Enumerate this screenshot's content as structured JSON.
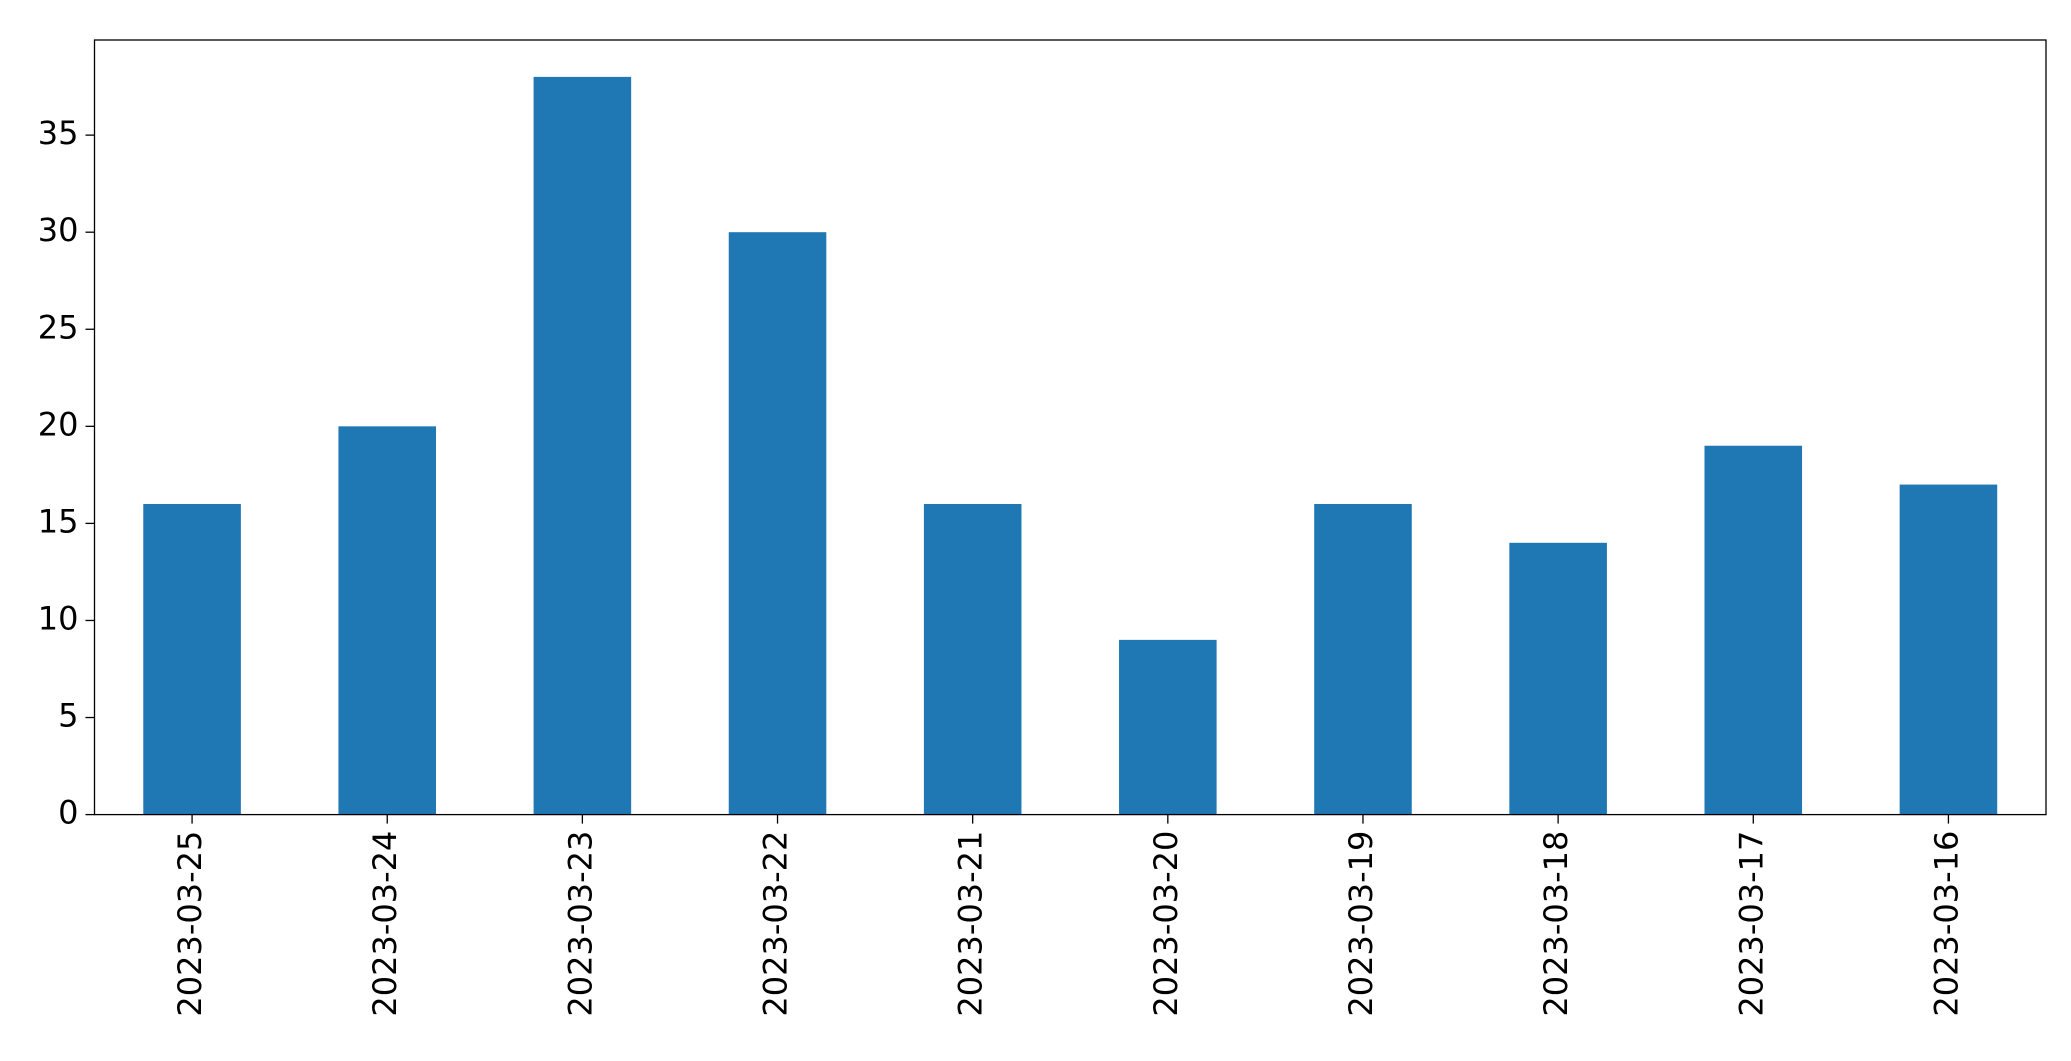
{
  "chart_data": {
    "type": "bar",
    "categories": [
      "2023-03-25",
      "2023-03-24",
      "2023-03-23",
      "2023-03-22",
      "2023-03-21",
      "2023-03-20",
      "2023-03-19",
      "2023-03-18",
      "2023-03-17",
      "2023-03-16"
    ],
    "values": [
      16,
      20,
      38,
      30,
      16,
      9,
      16,
      14,
      19,
      17
    ],
    "color": "#1f77b4",
    "ylim": [
      0,
      39.9
    ],
    "yticks": [
      0,
      5,
      10,
      15,
      20,
      25,
      30,
      35
    ],
    "grid": false
  }
}
